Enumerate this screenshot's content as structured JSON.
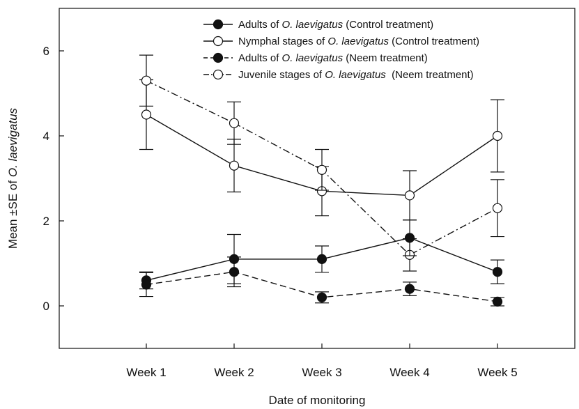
{
  "chart_data": {
    "type": "line",
    "title": "",
    "xlabel": "Date of monitoring",
    "ylabel_prefix": "Mean ±SE of ",
    "ylabel_species": "O. laevigatus",
    "categories": [
      "Week 1",
      "Week 2",
      "Week 3",
      "Week 4",
      "Week 5"
    ],
    "ylim": [
      -1,
      7
    ],
    "yticks": [
      0,
      2,
      4,
      6
    ],
    "grid": false,
    "legend_position": "top-right",
    "series": [
      {
        "name": "Adults of  O. laevigatus (Control treatment)",
        "legend_pre": "Adults of ",
        "legend_species": "O. laevigatus",
        "legend_post": " (Control treatment)",
        "marker": "filled-circle",
        "line_style": "solid",
        "values": [
          0.6,
          1.1,
          1.1,
          1.6,
          0.8
        ],
        "se": [
          0.2,
          0.58,
          0.31,
          0.42,
          0.28
        ]
      },
      {
        "name": "Nymphal stages of  O. laevigatus (Control treatment)",
        "legend_pre": "Nymphal stages of ",
        "legend_species": "O. laevigatus",
        "legend_post": " (Control treatment)",
        "marker": "open-circle",
        "line_style": "solid",
        "values": [
          4.5,
          3.3,
          2.7,
          2.6,
          4.0
        ],
        "se": [
          0.82,
          0.62,
          0.58,
          0.58,
          0.85
        ]
      },
      {
        "name": "Adults of O. laevigatus (Neem treatment)",
        "legend_pre": "Adults of ",
        "legend_species": "O. laevigatus",
        "legend_post": " (Neem treatment)",
        "marker": "filled-circle",
        "line_style": "dashed",
        "values": [
          0.5,
          0.8,
          0.2,
          0.4,
          0.1
        ],
        "se": [
          0.28,
          0.35,
          0.13,
          0.16,
          0.1
        ]
      },
      {
        "name": "Juvenile stages of  O. laevigatus  (Neem treatment)",
        "legend_pre": "Juvenile stages of ",
        "legend_species": "O. laevigatus",
        "legend_post": "  (Neem treatment)",
        "marker": "open-circle",
        "line_style": "dash-dot",
        "values": [
          5.3,
          4.3,
          3.2,
          1.2,
          2.3
        ],
        "se": [
          0.6,
          0.5,
          0.48,
          0.38,
          0.67
        ]
      }
    ]
  }
}
